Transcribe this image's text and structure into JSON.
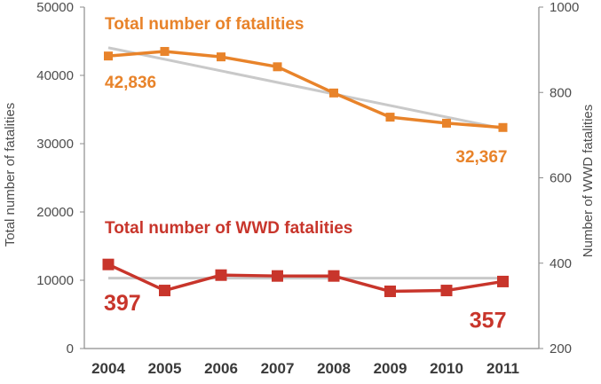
{
  "chart_data": {
    "type": "line",
    "categories": [
      "2004",
      "2005",
      "2006",
      "2007",
      "2008",
      "2009",
      "2010",
      "2011"
    ],
    "ylabel": "Total number of fatalities",
    "y2label": "Number of WWD fatalities",
    "ylim": [
      0,
      50000
    ],
    "y_ticks": [
      "0",
      "10000",
      "20000",
      "30000",
      "40000",
      "50000"
    ],
    "y2lim": [
      200,
      1000
    ],
    "y2_ticks": [
      "200",
      "400",
      "600",
      "800",
      "1000"
    ],
    "grid": false,
    "legend": "none",
    "series": [
      {
        "name": "Total number of fatalities",
        "axis": "left",
        "color": "#e8832a",
        "values": [
          42836,
          43510,
          42708,
          41259,
          37423,
          33883,
          32999,
          32367
        ],
        "trend": [
          44050,
          32200
        ]
      },
      {
        "name": "Total number of WWD fatalities",
        "axis": "right",
        "color": "#c8352b",
        "values": [
          397,
          336,
          372,
          370,
          370,
          334,
          336,
          357
        ],
        "trend": [
          365,
          365
        ]
      }
    ],
    "annotations": [
      {
        "series": 0,
        "index": 0,
        "text": "42,836"
      },
      {
        "series": 0,
        "index": 7,
        "text": "32,367"
      },
      {
        "series": 1,
        "index": 0,
        "text": "397"
      },
      {
        "series": 1,
        "index": 7,
        "text": "357"
      }
    ],
    "trend_color": "#c9c9c9",
    "axis_color": "#8c8c8c"
  }
}
